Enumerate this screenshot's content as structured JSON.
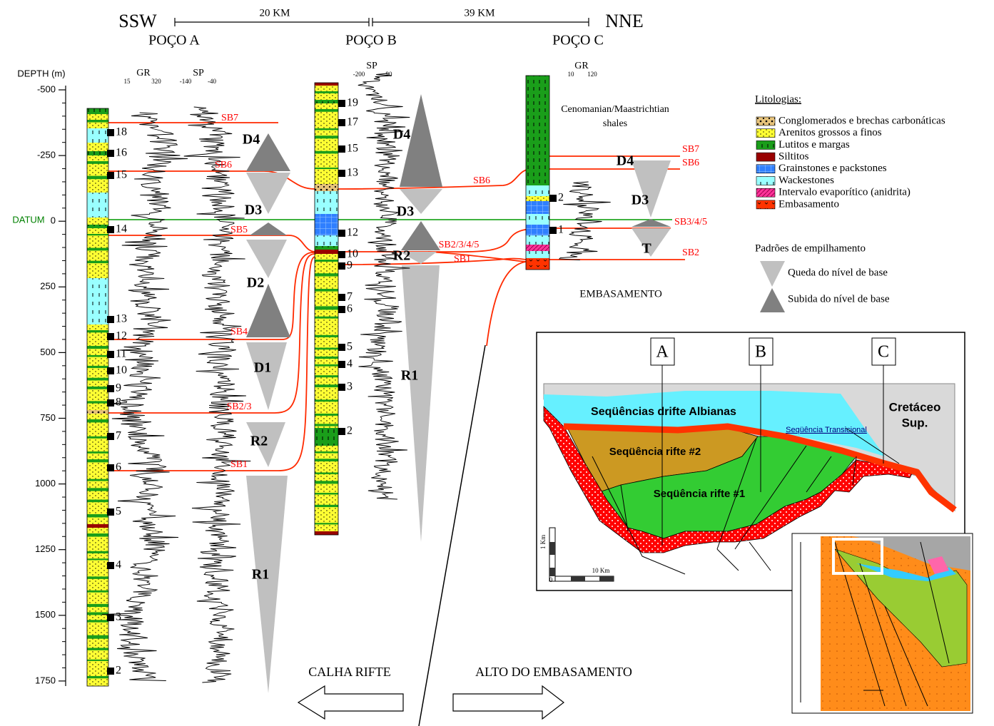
{
  "header": {
    "left_direction": "SSW",
    "right_direction": "NNE",
    "distance_ab": "20 KM",
    "distance_bc": "39 KM"
  },
  "depth_axis": {
    "title": "DEPTH (m)",
    "datum": "DATUM",
    "ticks": [
      "-500",
      "-250",
      "0",
      "250",
      "500",
      "750",
      "1000",
      "1250",
      "1500",
      "1750"
    ]
  },
  "wells": [
    {
      "name": "POÇO A",
      "logs": [
        {
          "name": "GR",
          "min": "15",
          "max": "320"
        },
        {
          "name": "SP",
          "min": "-140",
          "max": "-40"
        }
      ],
      "samples": [
        "18",
        "16",
        "15",
        "14",
        "13",
        "12",
        "11",
        "10",
        "9",
        "8",
        "7",
        "6",
        "5",
        "4",
        "3",
        "2"
      ],
      "surfaces": [
        "SB7",
        "SB6",
        "SB5",
        "SB4",
        "SB2/3",
        "SB1"
      ],
      "sequences": [
        "D4",
        "D3",
        "D2",
        "D1",
        "R2",
        "R1"
      ]
    },
    {
      "name": "POÇO B",
      "logs": [
        {
          "name": "SP",
          "min": "-200",
          "max": "90"
        }
      ],
      "samples": [
        "19",
        "17",
        "15",
        "13",
        "12",
        "10",
        "9",
        "7",
        "6",
        "5",
        "4",
        "3",
        "2"
      ],
      "surfaces": [
        "SB6",
        "SB2/3/4/5",
        "SB1"
      ],
      "sequences": [
        "D4",
        "D3",
        "R2",
        "R1"
      ]
    },
    {
      "name": "POÇO C",
      "logs": [
        {
          "name": "GR",
          "min": "10",
          "max": "120"
        }
      ],
      "samples": [
        "2",
        "1"
      ],
      "surfaces": [
        "SB7",
        "SB6",
        "SB3/4/5",
        "SB2"
      ],
      "sequences": [
        "D4",
        "D3",
        "T"
      ]
    }
  ],
  "annotations": {
    "shales": [
      "Cenomanian/Maastrichtian",
      "shales"
    ],
    "basement": "EMBASAMENTO",
    "left_arrow": "CALHA RIFTE",
    "right_arrow": "ALTO DO EMBASAMENTO"
  },
  "legend": {
    "title": "Litologias:",
    "items": [
      "Conglomerados e brechas carbonáticas",
      "Arenitos grossos a finos",
      "Lutitos e margas",
      "Siltitos",
      "Grainstones e packstones",
      "Wackestones",
      "Intervalo evaporítico (anidrita)",
      "Embasamento"
    ],
    "stacking_title": "Padrões de empilhamento",
    "stacking_items": [
      "Queda do nível de base",
      "Subida do nível de base"
    ]
  },
  "inset": {
    "wells": [
      "A",
      "B",
      "C"
    ],
    "units": [
      "Seqüências drifte Albianas",
      "Cretáceo",
      "Sup.",
      "Seqüência rifte #2",
      "Seqüência rifte #1",
      "Seqüência Transicional"
    ],
    "scale_vertical": "1 Km",
    "scale_horizontal": "10 Km",
    "scale_zero": "0"
  }
}
